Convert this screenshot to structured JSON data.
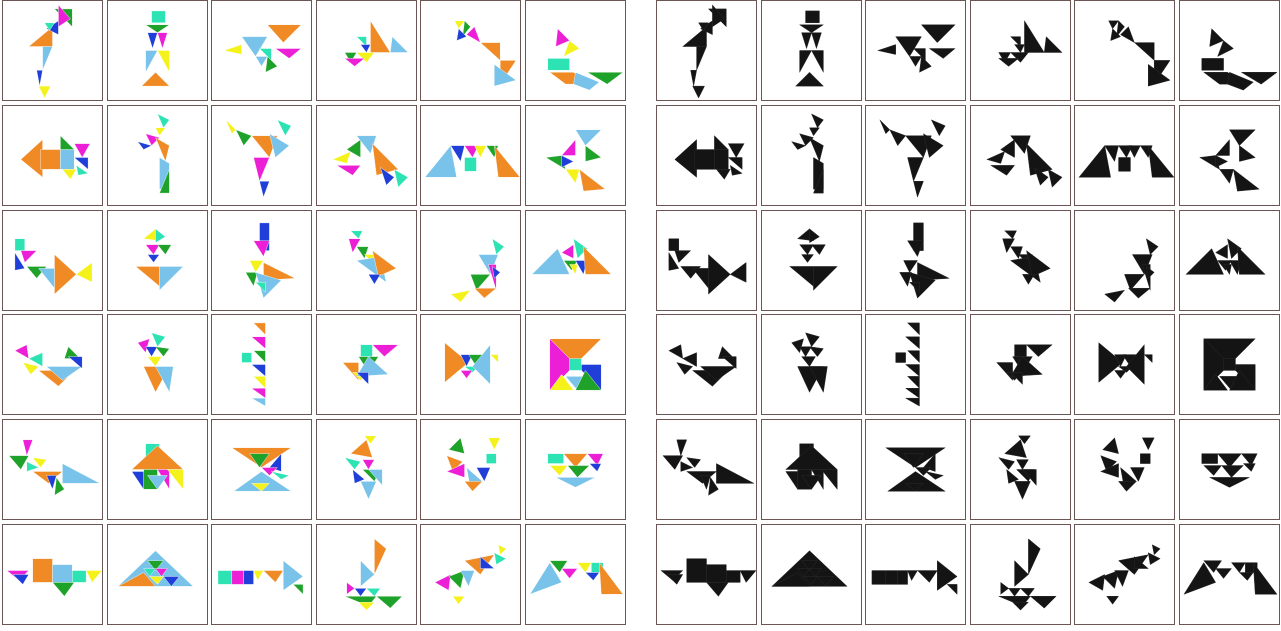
{
  "colors": {
    "orange": "#f08a24",
    "light_blue": "#79c3ea",
    "green": "#1fa22a",
    "magenta": "#ec1fd6",
    "blue": "#1f3fd8",
    "yellow": "#f4f21a",
    "teal": "#2de3b3",
    "black": "#141414",
    "border": "#6b5555"
  },
  "panels": [
    {
      "name": "color-puzzles",
      "style": "color",
      "rows": 6,
      "cols": 6
    },
    {
      "name": "silhouettes",
      "style": "black",
      "rows": 6,
      "cols": 6
    }
  ],
  "figures": [
    "heron",
    "lighthouse",
    "fish",
    "sailboat",
    "seal",
    "cat",
    "arrow-left",
    "runner",
    "dancer",
    "swan-head",
    "bridge",
    "arrowhead-left",
    "swan",
    "kite-vase",
    "goose",
    "camel",
    "sitting-person",
    "mountains",
    "bird",
    "flower-pot",
    "saw-tower",
    "hut",
    "bow-tie",
    "square",
    "crocodile",
    "house",
    "hourglass",
    "pelican",
    "rooster",
    "bowl",
    "ship",
    "triangle-hat",
    "arrow-right",
    "sailboat-2",
    "crane",
    "tunnel"
  ]
}
